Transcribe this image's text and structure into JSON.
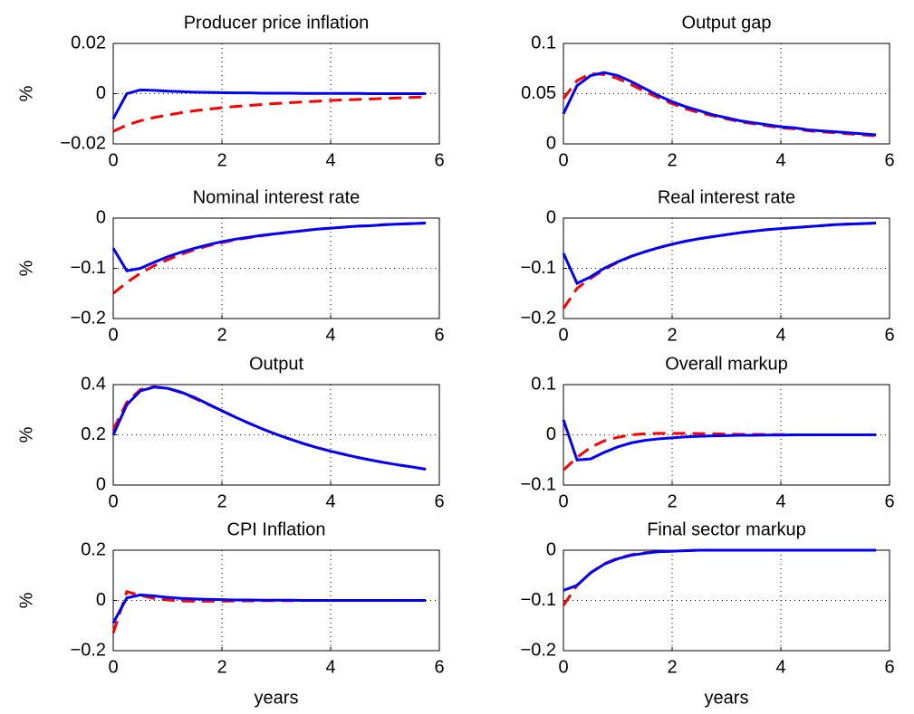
{
  "chart_data": [
    {
      "type": "line",
      "title": "Producer price inflation",
      "ylabel": "%",
      "x": [
        0,
        0.25,
        0.5,
        0.75,
        1,
        1.25,
        1.5,
        1.75,
        2,
        2.25,
        2.5,
        2.75,
        3,
        3.25,
        3.5,
        3.75,
        4,
        4.25,
        4.5,
        4.75,
        5,
        5.25,
        5.5,
        5.75
      ],
      "xlim": [
        0,
        6
      ],
      "xticks": [
        0,
        2,
        4,
        6
      ],
      "ylim": [
        -0.02,
        0.02
      ],
      "yticks": [
        {
          "value": -0.02,
          "label": "−0.02"
        },
        0,
        0.02
      ],
      "grid": true,
      "series": [
        {
          "color": "#ff0000",
          "style": "dashed",
          "values": [
            -0.015,
            -0.0125,
            -0.0108,
            -0.0095,
            -0.0085,
            -0.0076,
            -0.0068,
            -0.0062,
            -0.0056,
            -0.0051,
            -0.0047,
            -0.0043,
            -0.0039,
            -0.0036,
            -0.0033,
            -0.003,
            -0.0027,
            -0.0025,
            -0.0023,
            -0.0021,
            -0.0019,
            -0.0017,
            -0.0015,
            -0.0013
          ]
        },
        {
          "color": "#0000ff",
          "style": "solid",
          "values": [
            -0.01,
            0,
            0.0015,
            0.0013,
            0.001,
            0.0008,
            0.0006,
            0.0005,
            0.0004,
            0.0003,
            0.0003,
            0.0002,
            0.0002,
            0.0002,
            0.0001,
            0.0001,
            0.0001,
            0.0001,
            0.0001,
            0,
            0,
            0,
            0,
            0
          ]
        }
      ]
    },
    {
      "type": "line",
      "title": "Output gap",
      "x": [
        0,
        0.25,
        0.5,
        0.75,
        1,
        1.25,
        1.5,
        1.75,
        2,
        2.25,
        2.5,
        2.75,
        3,
        3.25,
        3.5,
        3.75,
        4,
        4.25,
        4.5,
        4.75,
        5,
        5.25,
        5.5,
        5.75
      ],
      "xlim": [
        0,
        6
      ],
      "xticks": [
        0,
        2,
        4,
        6
      ],
      "ylim": [
        0,
        0.1
      ],
      "yticks": [
        0,
        0.05,
        0.1
      ],
      "grid": true,
      "series": [
        {
          "color": "#ff0000",
          "style": "dashed",
          "values": [
            0.045,
            0.063,
            0.07,
            0.069,
            0.065,
            0.059,
            0.052,
            0.046,
            0.04,
            0.035,
            0.031,
            0.028,
            0.025,
            0.022,
            0.02,
            0.018,
            0.016,
            0.015,
            0.013,
            0.012,
            0.011,
            0.01,
            0.009,
            0.008
          ]
        },
        {
          "color": "#0000ff",
          "style": "solid",
          "values": [
            0.03,
            0.058,
            0.068,
            0.071,
            0.068,
            0.062,
            0.055,
            0.048,
            0.042,
            0.037,
            0.033,
            0.029,
            0.026,
            0.023,
            0.021,
            0.019,
            0.017,
            0.016,
            0.014,
            0.013,
            0.012,
            0.011,
            0.01,
            0.009
          ]
        }
      ]
    },
    {
      "type": "line",
      "title": "Nominal interest rate",
      "ylabel": "%",
      "x": [
        0,
        0.25,
        0.5,
        0.75,
        1,
        1.25,
        1.5,
        1.75,
        2,
        2.25,
        2.5,
        2.75,
        3,
        3.25,
        3.5,
        3.75,
        4,
        4.25,
        4.5,
        4.75,
        5,
        5.25,
        5.5,
        5.75
      ],
      "xlim": [
        0,
        6
      ],
      "xticks": [
        0,
        2,
        4,
        6
      ],
      "ylim": [
        -0.2,
        0
      ],
      "yticks": [
        {
          "value": -0.2,
          "label": "−0.2"
        },
        {
          "value": -0.1,
          "label": "−0.1"
        },
        0
      ],
      "grid": true,
      "series": [
        {
          "color": "#ff0000",
          "style": "dashed",
          "values": [
            -0.15,
            -0.128,
            -0.11,
            -0.095,
            -0.083,
            -0.072,
            -0.063,
            -0.055,
            -0.049,
            -0.043,
            -0.039,
            -0.035,
            -0.031,
            -0.028,
            -0.025,
            -0.022,
            -0.02,
            -0.018,
            -0.016,
            -0.015,
            -0.013,
            -0.012,
            -0.011,
            -0.01
          ]
        },
        {
          "color": "#0000ff",
          "style": "solid",
          "values": [
            -0.06,
            -0.105,
            -0.1,
            -0.088,
            -0.077,
            -0.068,
            -0.06,
            -0.053,
            -0.047,
            -0.042,
            -0.038,
            -0.034,
            -0.031,
            -0.028,
            -0.025,
            -0.022,
            -0.02,
            -0.018,
            -0.016,
            -0.015,
            -0.013,
            -0.012,
            -0.011,
            -0.01
          ]
        }
      ]
    },
    {
      "type": "line",
      "title": "Real interest rate",
      "x": [
        0,
        0.25,
        0.5,
        0.75,
        1,
        1.25,
        1.5,
        1.75,
        2,
        2.25,
        2.5,
        2.75,
        3,
        3.25,
        3.5,
        3.75,
        4,
        4.25,
        4.5,
        4.75,
        5,
        5.25,
        5.5,
        5.75
      ],
      "xlim": [
        0,
        6
      ],
      "xticks": [
        0,
        2,
        4,
        6
      ],
      "ylim": [
        -0.2,
        0
      ],
      "yticks": [
        {
          "value": -0.2,
          "label": "−0.2"
        },
        {
          "value": -0.1,
          "label": "−0.1"
        },
        0
      ],
      "grid": true,
      "series": [
        {
          "color": "#ff0000",
          "style": "dashed",
          "values": [
            -0.18,
            -0.14,
            -0.12,
            -0.102,
            -0.088,
            -0.076,
            -0.067,
            -0.059,
            -0.052,
            -0.046,
            -0.041,
            -0.037,
            -0.033,
            -0.029,
            -0.026,
            -0.023,
            -0.021,
            -0.019,
            -0.017,
            -0.015,
            -0.013,
            -0.012,
            -0.011,
            -0.01
          ]
        },
        {
          "color": "#0000ff",
          "style": "solid",
          "values": [
            -0.07,
            -0.13,
            -0.117,
            -0.1,
            -0.087,
            -0.076,
            -0.067,
            -0.059,
            -0.052,
            -0.046,
            -0.041,
            -0.037,
            -0.033,
            -0.029,
            -0.026,
            -0.023,
            -0.021,
            -0.019,
            -0.017,
            -0.015,
            -0.013,
            -0.012,
            -0.011,
            -0.01
          ]
        }
      ]
    },
    {
      "type": "line",
      "title": "Output",
      "ylabel": "%",
      "x": [
        0,
        0.25,
        0.5,
        0.75,
        1,
        1.25,
        1.5,
        1.75,
        2,
        2.25,
        2.5,
        2.75,
        3,
        3.25,
        3.5,
        3.75,
        4,
        4.25,
        4.5,
        4.75,
        5,
        5.25,
        5.5,
        5.75
      ],
      "xlim": [
        0,
        6
      ],
      "xticks": [
        0,
        2,
        4,
        6
      ],
      "ylim": [
        0,
        0.4
      ],
      "yticks": [
        0,
        0.2,
        0.4
      ],
      "grid": true,
      "series": [
        {
          "color": "#ff0000",
          "style": "dashed",
          "values": [
            0.22,
            0.33,
            0.38,
            0.392,
            0.385,
            0.368,
            0.345,
            0.32,
            0.296,
            0.27,
            0.246,
            0.223,
            0.202,
            0.183,
            0.165,
            0.149,
            0.135,
            0.122,
            0.11,
            0.099,
            0.089,
            0.08,
            0.072,
            0.063
          ]
        },
        {
          "color": "#0000ff",
          "style": "solid",
          "values": [
            0.2,
            0.32,
            0.375,
            0.39,
            0.385,
            0.37,
            0.348,
            0.322,
            0.296,
            0.27,
            0.246,
            0.223,
            0.202,
            0.183,
            0.165,
            0.149,
            0.135,
            0.122,
            0.11,
            0.099,
            0.089,
            0.08,
            0.072,
            0.063
          ]
        }
      ]
    },
    {
      "type": "line",
      "title": "Overall markup",
      "x": [
        0,
        0.25,
        0.5,
        0.75,
        1,
        1.25,
        1.5,
        1.75,
        2,
        2.25,
        2.5,
        2.75,
        3,
        3.25,
        3.5,
        3.75,
        4,
        4.25,
        4.5,
        4.75,
        5,
        5.25,
        5.5,
        5.75
      ],
      "xlim": [
        0,
        6
      ],
      "xticks": [
        0,
        2,
        4,
        6
      ],
      "ylim": [
        -0.1,
        0.1
      ],
      "yticks": [
        {
          "value": -0.1,
          "label": "−0.1"
        },
        0,
        0.1
      ],
      "grid": true,
      "series": [
        {
          "color": "#ff0000",
          "style": "dashed",
          "values": [
            -0.07,
            -0.045,
            -0.025,
            -0.012,
            -0.005,
            0,
            0.002,
            0.003,
            0.003,
            0.003,
            0.0025,
            0.002,
            0.0015,
            0.001,
            0.001,
            0.0005,
            0.0005,
            0,
            0,
            0,
            0,
            0,
            0,
            0
          ]
        },
        {
          "color": "#0000ff",
          "style": "solid",
          "values": [
            0.03,
            -0.05,
            -0.048,
            -0.035,
            -0.024,
            -0.016,
            -0.011,
            -0.008,
            -0.006,
            -0.004,
            -0.003,
            -0.002,
            -0.0015,
            -0.001,
            -0.001,
            -0.0005,
            -0.0005,
            0,
            0,
            0,
            0,
            0,
            0,
            0
          ]
        }
      ]
    },
    {
      "type": "line",
      "title": "CPI Inflation",
      "ylabel": "%",
      "xlabel": "years",
      "x": [
        0,
        0.25,
        0.5,
        0.75,
        1,
        1.25,
        1.5,
        1.75,
        2,
        2.25,
        2.5,
        2.75,
        3,
        3.25,
        3.5,
        3.75,
        4,
        4.25,
        4.5,
        4.75,
        5,
        5.25,
        5.5,
        5.75
      ],
      "xlim": [
        0,
        6
      ],
      "xticks": [
        0,
        2,
        4,
        6
      ],
      "ylim": [
        -0.2,
        0.2
      ],
      "yticks": [
        {
          "value": -0.2,
          "label": "−0.2"
        },
        0,
        0.2
      ],
      "grid": true,
      "series": [
        {
          "color": "#ff0000",
          "style": "dashed",
          "values": [
            -0.13,
            0.035,
            0.02,
            0.008,
            0.002,
            -0.002,
            -0.003,
            -0.003,
            -0.003,
            -0.002,
            -0.002,
            -0.001,
            -0.001,
            -0.001,
            0,
            0,
            0,
            0,
            0,
            0,
            0,
            0,
            0,
            0
          ]
        },
        {
          "color": "#0000ff",
          "style": "solid",
          "values": [
            -0.09,
            0.01,
            0.022,
            0.018,
            0.012,
            0.008,
            0.006,
            0.004,
            0.003,
            0.002,
            0.002,
            0.001,
            0.001,
            0.001,
            0,
            0,
            0,
            0,
            0,
            0,
            0,
            0,
            0,
            0
          ]
        }
      ]
    },
    {
      "type": "line",
      "title": "Final sector markup",
      "xlabel": "years",
      "x": [
        0,
        0.25,
        0.5,
        0.75,
        1,
        1.25,
        1.5,
        1.75,
        2,
        2.25,
        2.5,
        2.75,
        3,
        3.25,
        3.5,
        3.75,
        4,
        4.25,
        4.5,
        4.75,
        5,
        5.25,
        5.5,
        5.75
      ],
      "xlim": [
        0,
        6
      ],
      "xticks": [
        0,
        2,
        4,
        6
      ],
      "ylim": [
        -0.2,
        0
      ],
      "yticks": [
        {
          "value": -0.2,
          "label": "−0.2"
        },
        {
          "value": -0.1,
          "label": "−0.1"
        },
        0
      ],
      "grid": true,
      "series": [
        {
          "color": "#ff0000",
          "style": "dashed",
          "values": [
            -0.11,
            -0.07,
            -0.045,
            -0.027,
            -0.016,
            -0.009,
            -0.005,
            -0.003,
            -0.002,
            -0.001,
            0,
            0,
            0,
            0,
            0,
            0,
            0,
            0,
            0,
            0,
            0,
            0,
            0,
            0
          ]
        },
        {
          "color": "#0000ff",
          "style": "solid",
          "values": [
            -0.08,
            -0.07,
            -0.045,
            -0.028,
            -0.017,
            -0.01,
            -0.006,
            -0.003,
            -0.002,
            -0.001,
            0,
            0,
            0,
            0,
            0,
            0,
            0,
            0,
            0,
            0,
            0,
            0,
            0,
            0
          ]
        }
      ]
    }
  ]
}
